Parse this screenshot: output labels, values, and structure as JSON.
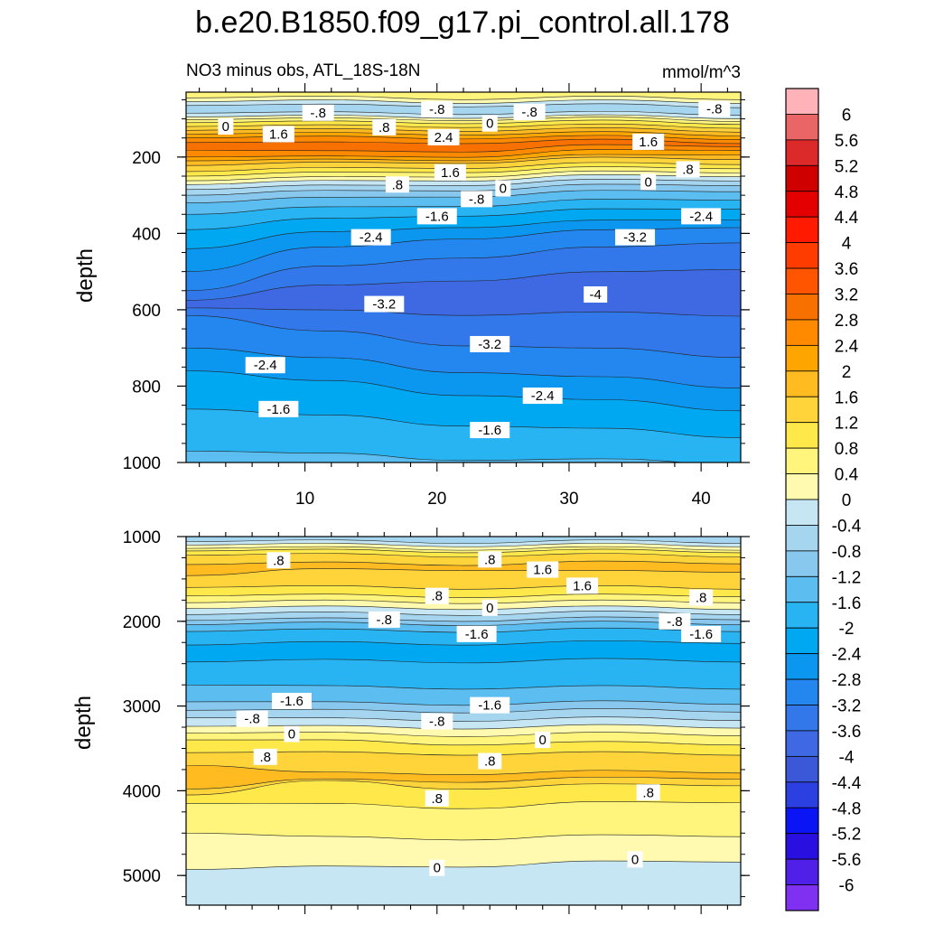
{
  "title": "b.e20.B1850.f09_g17.pi_control.all.178",
  "units": "mmol/m^3",
  "colorbar": {
    "levels": [
      "6",
      "5.6",
      "5.2",
      "4.8",
      "4.4",
      "4",
      "3.6",
      "3.2",
      "2.8",
      "2.4",
      "2",
      "1.6",
      "1.2",
      "0.8",
      "0.4",
      "0",
      "-0.4",
      "-0.8",
      "-1.2",
      "-1.6",
      "-2",
      "-2.4",
      "-2.8",
      "-3.2",
      "-3.6",
      "-4",
      "-4.4",
      "-4.8",
      "-5.2",
      "-5.6",
      "-6"
    ],
    "colors": [
      "#ffb3b8",
      "#ea6565",
      "#dc2a2a",
      "#cf0000",
      "#e40000",
      "#ff1a00",
      "#ff3c00",
      "#ff5500",
      "#f87000",
      "#ff8a00",
      "#ffa500",
      "#ffbb20",
      "#ffd33a",
      "#ffe84a",
      "#fff47c",
      "#fffab0",
      "#c6e6f3",
      "#a6d5f0",
      "#88c8ee",
      "#5bbdf0",
      "#28b3f2",
      "#00a8f2",
      "#0b96f0",
      "#2487f0",
      "#3378ea",
      "#3f69e2",
      "#3a58d8",
      "#2c3fe0",
      "#0a14f5",
      "#2a10e0",
      "#5020e8",
      "#8030f0"
    ]
  },
  "chart_data": [
    {
      "type": "contour",
      "subtitle": "NO3 minus obs, ATL_18S-18N",
      "xlabel": "",
      "ylabel": "depth",
      "xlim": [
        1,
        43
      ],
      "ylim": [
        1000,
        30
      ],
      "yticks": [
        "200",
        "400",
        "600",
        "800",
        "1000"
      ],
      "xticks": [
        "10",
        "20",
        "30",
        "40"
      ],
      "layers": [
        {
          "level": -1.6,
          "y": [
            1000,
            1000,
            1000,
            1000,
            1000
          ],
          "fill": "#5bbdf0"
        },
        {
          "level": -2.0,
          "y": [
            970,
            980,
            990,
            995,
            1000
          ],
          "fill": "#28b3f2"
        },
        {
          "level": -2.4,
          "y": [
            860,
            880,
            900,
            915,
            930
          ],
          "fill": "#00a8f2"
        },
        {
          "level": -2.8,
          "y": [
            760,
            790,
            820,
            840,
            860
          ],
          "fill": "#0b96f0"
        },
        {
          "level": -3.2,
          "y": [
            700,
            730,
            760,
            780,
            800
          ],
          "fill": "#2487f0"
        },
        {
          "level": -3.6,
          "y": [
            615,
            660,
            690,
            705,
            720
          ],
          "fill": "#3378ea"
        },
        {
          "level": -4.0,
          "y": [
            595,
            605,
            610,
            610,
            612
          ],
          "fill": "#3f69e2"
        },
        {
          "level": -3.6,
          "y": [
            575,
            540,
            520,
            505,
            490
          ],
          "fill": "#3378ea"
        },
        {
          "level": -3.2,
          "y": [
            550,
            490,
            460,
            440,
            420
          ],
          "fill": "#2487f0"
        },
        {
          "level": -2.8,
          "y": [
            500,
            440,
            410,
            395,
            380
          ],
          "fill": "#0b96f0"
        },
        {
          "level": -2.4,
          "y": [
            440,
            400,
            380,
            370,
            360
          ],
          "fill": "#00a8f2"
        },
        {
          "level": -2.0,
          "y": [
            390,
            365,
            350,
            340,
            332
          ],
          "fill": "#28b3f2"
        },
        {
          "level": -1.6,
          "y": [
            350,
            335,
            325,
            315,
            308
          ],
          "fill": "#5bbdf0"
        },
        {
          "level": -1.2,
          "y": [
            320,
            310,
            300,
            292,
            286
          ],
          "fill": "#88c8ee"
        },
        {
          "level": -0.8,
          "y": [
            300,
            292,
            284,
            276,
            270
          ],
          "fill": "#a6d5f0"
        },
        {
          "level": -0.4,
          "y": [
            285,
            278,
            270,
            263,
            258
          ],
          "fill": "#c6e6f3"
        },
        {
          "level": 0.0,
          "y": [
            272,
            266,
            258,
            251,
            247
          ],
          "fill": "#fffab0"
        },
        {
          "level": 0.4,
          "y": [
            262,
            256,
            248,
            241,
            237
          ],
          "fill": "#fff47c"
        },
        {
          "level": 0.8,
          "y": [
            250,
            244,
            236,
            230,
            226
          ],
          "fill": "#ffe84a"
        },
        {
          "level": 1.2,
          "y": [
            238,
            232,
            225,
            219,
            215
          ],
          "fill": "#ffd33a"
        },
        {
          "level": 1.6,
          "y": [
            222,
            218,
            212,
            205,
            202
          ],
          "fill": "#ffbb20"
        },
        {
          "level": 2.0,
          "y": [
            210,
            210,
            205,
            198,
            190
          ],
          "fill": "#ffa500"
        },
        {
          "level": 2.4,
          "y": [
            200,
            202,
            196,
            185,
            178
          ],
          "fill": "#ff8a00"
        },
        {
          "level": 2.8,
          "y": [
            182,
            188,
            182,
            172,
            168
          ],
          "fill": "#f87000"
        },
        {
          "level": 2.4,
          "y": [
            162,
            165,
            160,
            158,
            160
          ],
          "fill": "#ff8a00"
        },
        {
          "level": 2.0,
          "y": [
            150,
            150,
            148,
            148,
            150
          ],
          "fill": "#ffa500"
        },
        {
          "level": 1.6,
          "y": [
            140,
            140,
            138,
            138,
            140
          ],
          "fill": "#ffbb20"
        },
        {
          "level": 1.2,
          "y": [
            130,
            130,
            128,
            128,
            130
          ],
          "fill": "#ffd33a"
        },
        {
          "level": 0.8,
          "y": [
            120,
            120,
            118,
            118,
            120
          ],
          "fill": "#ffe84a"
        },
        {
          "level": 0.4,
          "y": [
            110,
            110,
            108,
            108,
            110
          ],
          "fill": "#fff47c"
        },
        {
          "level": 0.0,
          "y": [
            102,
            102,
            100,
            100,
            102
          ],
          "fill": "#fffab0"
        },
        {
          "level": -0.4,
          "y": [
            95,
            95,
            94,
            94,
            95
          ],
          "fill": "#c6e6f3"
        },
        {
          "level": -0.8,
          "y": [
            85,
            86,
            84,
            85,
            86
          ],
          "fill": "#a6d5f0"
        },
        {
          "level": -0.4,
          "y": [
            65,
            66,
            64,
            65,
            66
          ],
          "fill": "#c6e6f3"
        },
        {
          "level": 0.0,
          "y": [
            55,
            55,
            55,
            55,
            55
          ],
          "fill": "#fffab0"
        },
        {
          "level": 0.4,
          "y": [
            45,
            45,
            45,
            45,
            45
          ],
          "fill": "#fff47c"
        }
      ],
      "labels": [
        {
          "text": "0",
          "x": 4,
          "y": 120
        },
        {
          "text": "-.8",
          "x": 11,
          "y": 84
        },
        {
          "text": "1.6",
          "x": 8,
          "y": 140
        },
        {
          "text": ".8",
          "x": 16,
          "y": 122
        },
        {
          "text": "-.8",
          "x": 20,
          "y": 75
        },
        {
          "text": "2.4",
          "x": 20.5,
          "y": 148
        },
        {
          "text": "0",
          "x": 24,
          "y": 112
        },
        {
          "text": "-.8",
          "x": 27,
          "y": 82
        },
        {
          "text": "-.8",
          "x": 41,
          "y": 74
        },
        {
          "text": "1.6",
          "x": 36,
          "y": 160
        },
        {
          "text": ".8",
          "x": 39,
          "y": 232
        },
        {
          "text": "1.6",
          "x": 21,
          "y": 240
        },
        {
          "text": ".8",
          "x": 17,
          "y": 272
        },
        {
          "text": "0",
          "x": 36,
          "y": 265
        },
        {
          "text": "0",
          "x": 25,
          "y": 282
        },
        {
          "text": "-.8",
          "x": 23,
          "y": 310
        },
        {
          "text": "-1.6",
          "x": 20,
          "y": 355
        },
        {
          "text": "-2.4",
          "x": 40,
          "y": 355
        },
        {
          "text": "-3.2",
          "x": 35,
          "y": 410
        },
        {
          "text": "-2.4",
          "x": 15,
          "y": 410
        },
        {
          "text": "-3.2",
          "x": 16,
          "y": 585
        },
        {
          "text": "-4",
          "x": 32,
          "y": 560
        },
        {
          "text": "-3.2",
          "x": 24,
          "y": 690
        },
        {
          "text": "-2.4",
          "x": 7,
          "y": 745
        },
        {
          "text": "-2.4",
          "x": 28,
          "y": 825
        },
        {
          "text": "-1.6",
          "x": 8,
          "y": 860
        },
        {
          "text": "-1.6",
          "x": 24,
          "y": 915
        }
      ]
    },
    {
      "type": "contour",
      "subtitle": "",
      "xlabel": "",
      "ylabel": "depth",
      "xlim": [
        1,
        43
      ],
      "ylim": [
        5350,
        1000
      ],
      "yticks": [
        "1000",
        "2000",
        "3000",
        "4000",
        "5000"
      ],
      "xticks": [],
      "layers": [
        {
          "level": -0.4,
          "y": [
            5350,
            5350,
            5350,
            5350,
            5350
          ],
          "fill": "#c6e6f3"
        },
        {
          "level": 0.0,
          "y": [
            4930,
            4910,
            4880,
            4850,
            4820
          ],
          "fill": "#fffab0"
        },
        {
          "level": 0.4,
          "y": [
            4500,
            4560,
            4560,
            4540,
            4520
          ],
          "fill": "#fff47c"
        },
        {
          "level": 0.8,
          "y": [
            4150,
            4170,
            4190,
            4150,
            4120
          ],
          "fill": "#ffe84a"
        },
        {
          "level": 1.2,
          "y": [
            4050,
            3900,
            3960,
            3940,
            3920
          ],
          "fill": "#ffd33a"
        },
        {
          "level": 1.6,
          "y": [
            3980,
            3880,
            3880,
            3860,
            3840
          ],
          "fill": "#ffbb20"
        },
        {
          "level": 1.2,
          "y": [
            3700,
            3800,
            3790,
            3780,
            3770
          ],
          "fill": "#ffd33a"
        },
        {
          "level": 0.8,
          "y": [
            3550,
            3560,
            3560,
            3560,
            3560
          ],
          "fill": "#ffe84a"
        },
        {
          "level": 0.4,
          "y": [
            3400,
            3420,
            3440,
            3440,
            3440
          ],
          "fill": "#fff47c"
        },
        {
          "level": 0.0,
          "y": [
            3320,
            3330,
            3340,
            3330,
            3330
          ],
          "fill": "#fffab0"
        },
        {
          "level": -0.4,
          "y": [
            3240,
            3250,
            3250,
            3240,
            3240
          ],
          "fill": "#c6e6f3"
        },
        {
          "level": -0.8,
          "y": [
            3140,
            3160,
            3160,
            3150,
            3150
          ],
          "fill": "#a6d5f0"
        },
        {
          "level": -1.2,
          "y": [
            3050,
            3060,
            3060,
            3050,
            3050
          ],
          "fill": "#88c8ee"
        },
        {
          "level": -1.6,
          "y": [
            2950,
            2970,
            2970,
            2960,
            2960
          ],
          "fill": "#5bbdf0"
        },
        {
          "level": -2.0,
          "y": [
            2750,
            2780,
            2780,
            2780,
            2780
          ],
          "fill": "#28b3f2"
        },
        {
          "level": -2.4,
          "y": [
            2480,
            2470,
            2470,
            2460,
            2460
          ],
          "fill": "#00a8f2"
        },
        {
          "level": -2.0,
          "y": [
            2280,
            2260,
            2260,
            2250,
            2240
          ],
          "fill": "#28b3f2"
        },
        {
          "level": -1.6,
          "y": [
            2120,
            2110,
            2110,
            2100,
            2100
          ],
          "fill": "#5bbdf0"
        },
        {
          "level": -1.2,
          "y": [
            2040,
            2030,
            2030,
            2020,
            2020
          ],
          "fill": "#88c8ee"
        },
        {
          "level": -0.8,
          "y": [
            1990,
            1980,
            1980,
            1970,
            1960
          ],
          "fill": "#a6d5f0"
        },
        {
          "level": -0.4,
          "y": [
            1920,
            1910,
            1910,
            1900,
            1900
          ],
          "fill": "#c6e6f3"
        },
        {
          "level": 0.0,
          "y": [
            1850,
            1840,
            1840,
            1840,
            1840
          ],
          "fill": "#fffab0"
        },
        {
          "level": 0.4,
          "y": [
            1780,
            1770,
            1770,
            1770,
            1760
          ],
          "fill": "#fff47c"
        },
        {
          "level": 0.8,
          "y": [
            1700,
            1700,
            1700,
            1700,
            1690
          ],
          "fill": "#ffe84a"
        },
        {
          "level": 1.2,
          "y": [
            1600,
            1600,
            1600,
            1600,
            1600
          ],
          "fill": "#ffd33a"
        },
        {
          "level": 1.6,
          "y": [
            1460,
            1400,
            1380,
            1420,
            1400
          ],
          "fill": "#ffbb20"
        },
        {
          "level": 1.2,
          "y": [
            1330,
            1320,
            1320,
            1310,
            1300
          ],
          "fill": "#ffd33a"
        },
        {
          "level": 0.8,
          "y": [
            1220,
            1220,
            1220,
            1220,
            1220
          ],
          "fill": "#ffe84a"
        },
        {
          "level": 0.4,
          "y": [
            1170,
            1170,
            1170,
            1170,
            1170
          ],
          "fill": "#fff47c"
        },
        {
          "level": 0.0,
          "y": [
            1140,
            1140,
            1140,
            1140,
            1140
          ],
          "fill": "#fffab0"
        },
        {
          "level": -0.4,
          "y": [
            1100,
            1100,
            1100,
            1100,
            1100
          ],
          "fill": "#c6e6f3"
        },
        {
          "level": -0.8,
          "y": [
            1060,
            1060,
            1060,
            1060,
            1060
          ],
          "fill": "#a6d5f0"
        }
      ],
      "labels": [
        {
          "text": ".8",
          "x": 8,
          "y": 1280
        },
        {
          "text": ".8",
          "x": 24,
          "y": 1270
        },
        {
          "text": "1.6",
          "x": 28,
          "y": 1390
        },
        {
          "text": "1.6",
          "x": 31,
          "y": 1580
        },
        {
          "text": ".8",
          "x": 20,
          "y": 1700
        },
        {
          "text": "0",
          "x": 24,
          "y": 1840
        },
        {
          "text": ".8",
          "x": 40,
          "y": 1720
        },
        {
          "text": "-.8",
          "x": 16,
          "y": 1980
        },
        {
          "text": "-1.6",
          "x": 23,
          "y": 2150
        },
        {
          "text": "-.8",
          "x": 38,
          "y": 2000
        },
        {
          "text": "-1.6",
          "x": 40,
          "y": 2150
        },
        {
          "text": "-1.6",
          "x": 9,
          "y": 2940
        },
        {
          "text": "-1.6",
          "x": 24,
          "y": 2990
        },
        {
          "text": "-.8",
          "x": 6,
          "y": 3150
        },
        {
          "text": "-.8",
          "x": 20,
          "y": 3180
        },
        {
          "text": "0",
          "x": 9,
          "y": 3330
        },
        {
          "text": "0",
          "x": 28,
          "y": 3400
        },
        {
          "text": ".8",
          "x": 7,
          "y": 3600
        },
        {
          "text": ".8",
          "x": 24,
          "y": 3650
        },
        {
          "text": ".8",
          "x": 20,
          "y": 4090
        },
        {
          "text": ".8",
          "x": 36,
          "y": 4020
        },
        {
          "text": "0",
          "x": 20,
          "y": 4910
        },
        {
          "text": "0",
          "x": 35,
          "y": 4810
        }
      ]
    }
  ]
}
